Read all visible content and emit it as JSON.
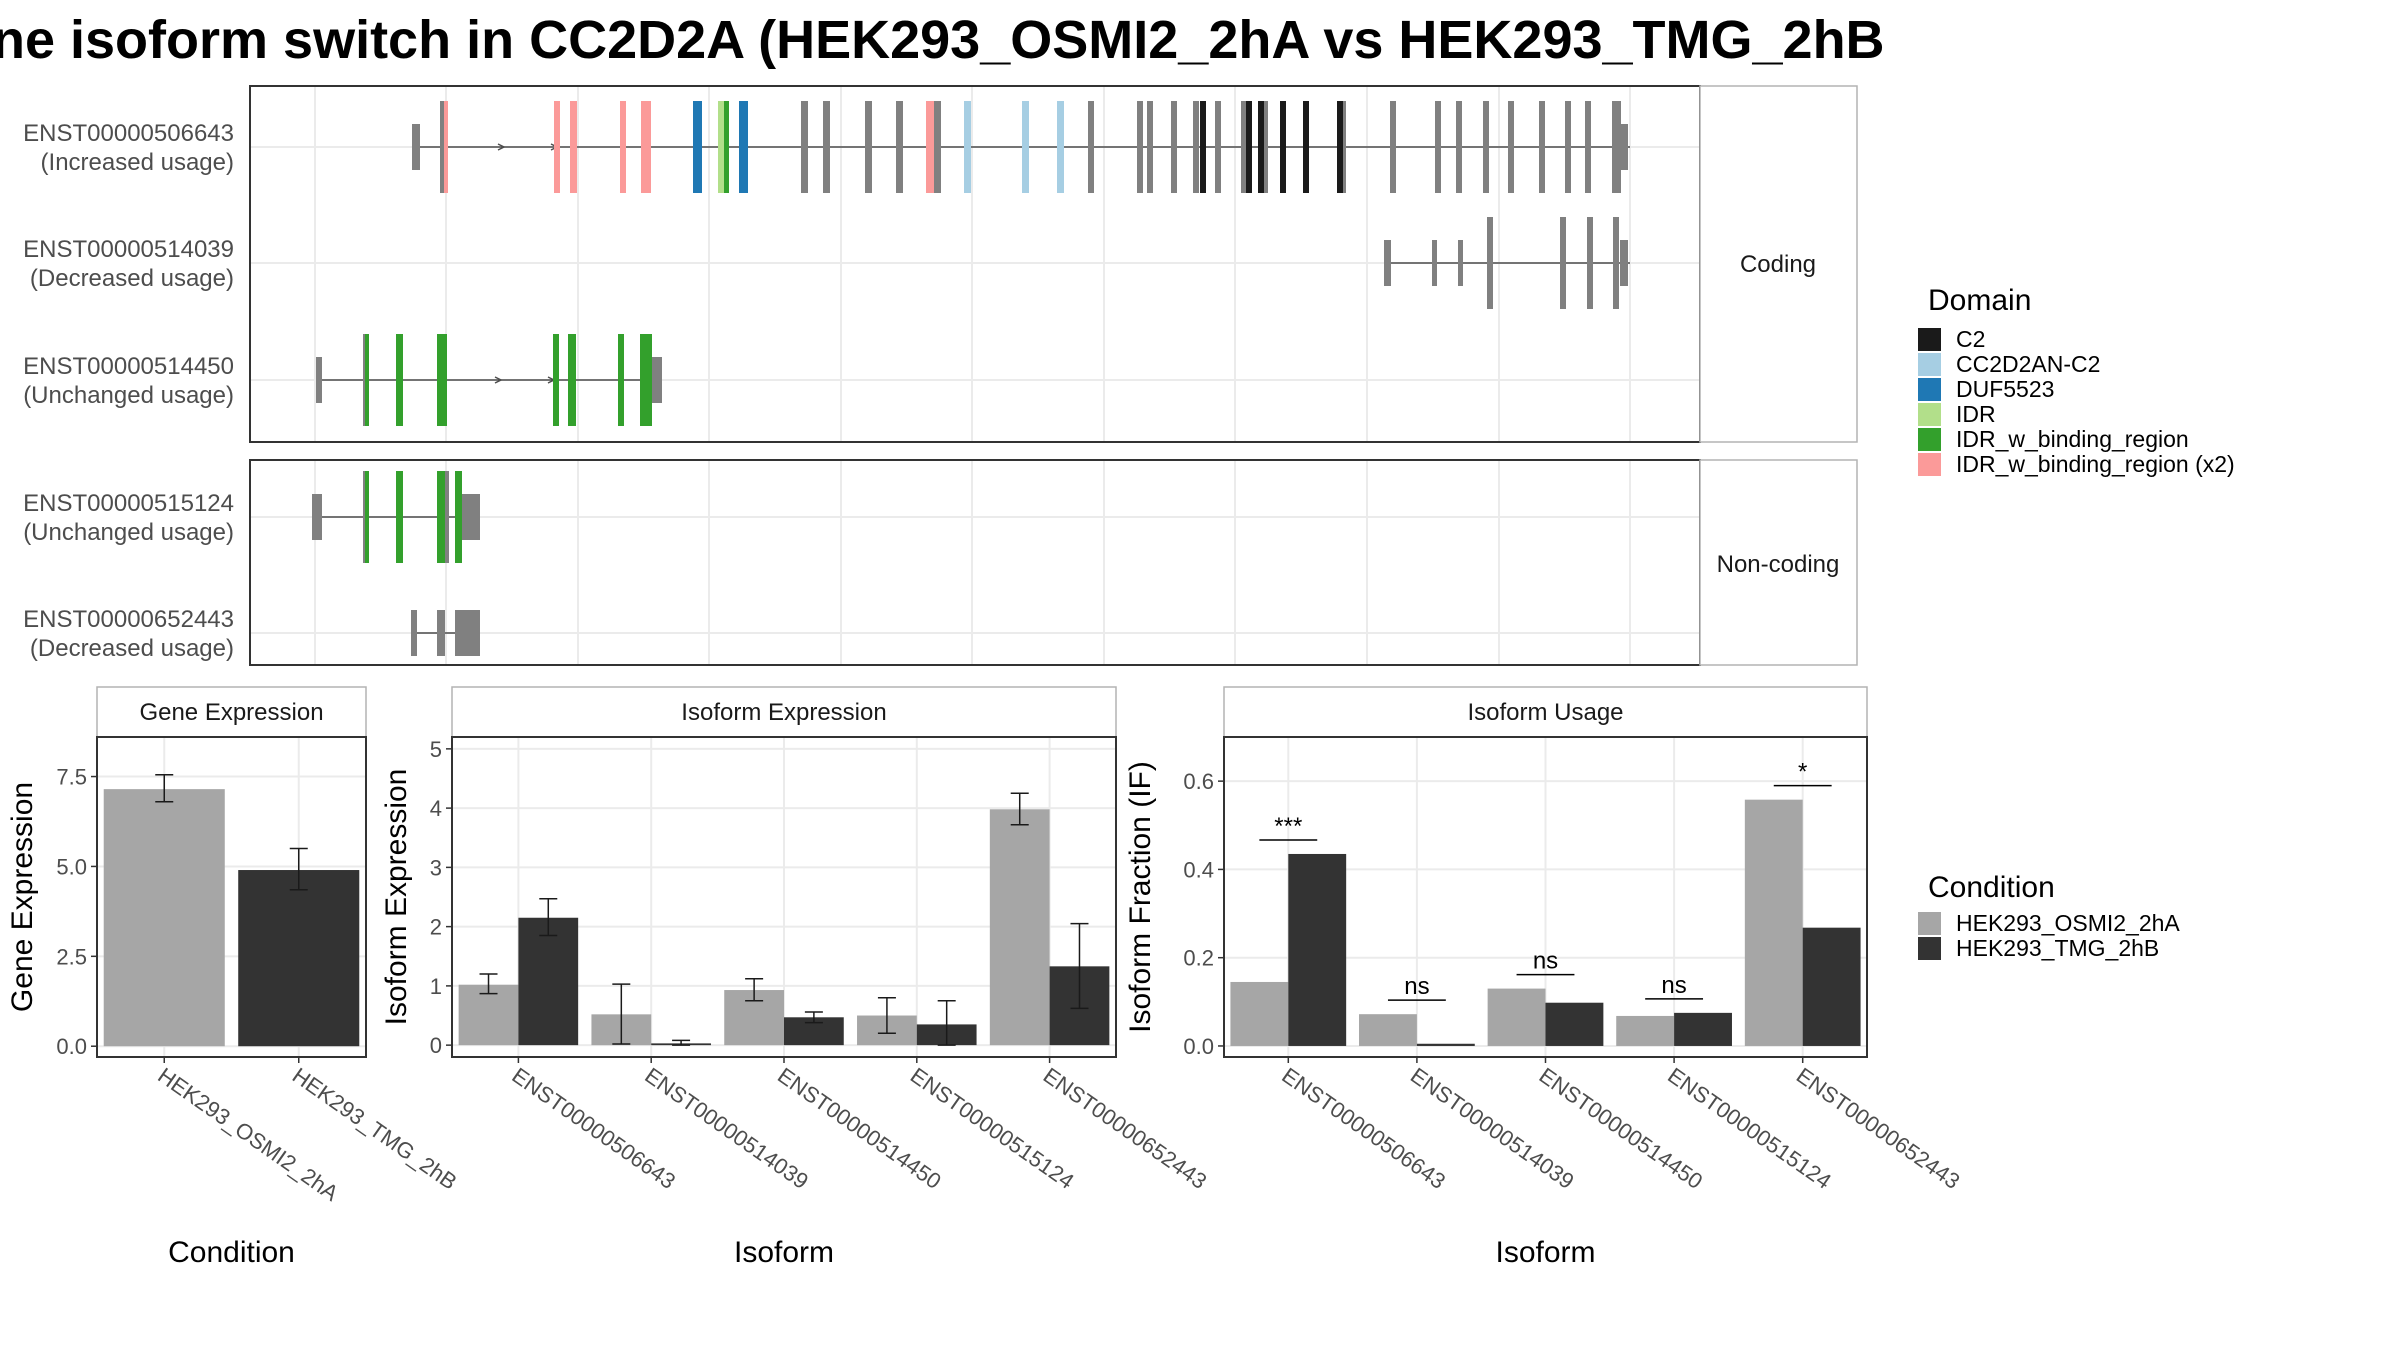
{
  "colors": {
    "exon_gray": "#808080",
    "C2": "#1a1a1a",
    "CC2D2AN-C2": "#a6cee3",
    "DUF5523": "#1f78b4",
    "IDR": "#b2df8a",
    "IDR_w_binding_region": "#33a02c",
    "IDR_w_binding_region (x2)": "#fb9a99",
    "cond1": "#a6a6a6",
    "cond2": "#333333"
  },
  "title": "ne isoform switch in CC2D2A (HEK293_OSMI2_2hA vs HEK293_TMG_2hB",
  "structure": {
    "panels": [
      {
        "label": "Coding",
        "transcripts": [
          {
            "id": "ENST00000506643",
            "usage": "(Increased usage)"
          },
          {
            "id": "ENST00000514039",
            "usage": "(Decreased usage)"
          },
          {
            "id": "ENST00000514450",
            "usage": "(Unchanged usage)"
          }
        ]
      },
      {
        "label": "Non-coding",
        "transcripts": [
          {
            "id": "ENST00000515124",
            "usage": "(Unchanged usage)"
          },
          {
            "id": "ENST00000652443",
            "usage": "(Decreased usage)"
          }
        ]
      }
    ]
  },
  "legend_domain": {
    "title": "Domain",
    "items": [
      "C2",
      "CC2D2AN-C2",
      "DUF5523",
      "IDR",
      "IDR_w_binding_region",
      "IDR_w_binding_region (x2)"
    ]
  },
  "legend_condition": {
    "title": "Condition",
    "items": [
      "HEK293_OSMI2_2hA",
      "HEK293_TMG_2hB"
    ]
  },
  "chart_data": [
    {
      "type": "bar",
      "title": "Gene Expression",
      "xlabel": "Condition",
      "ylabel": "Gene Expression",
      "categories": [
        "HEK293_OSMI2_2hA",
        "HEK293_TMG_2hB"
      ],
      "values": [
        7.15,
        4.9
      ],
      "error_low": [
        6.8,
        4.35
      ],
      "error_high": [
        7.55,
        5.5
      ],
      "ylim": [
        -0.3,
        8.6
      ],
      "yticks": [
        "0.0",
        "2.5",
        "5.0",
        "7.5"
      ],
      "ytick_values": [
        0,
        2.5,
        5,
        7.5
      ]
    },
    {
      "type": "bar",
      "title": "Isoform Expression",
      "xlabel": "Isoform",
      "ylabel": "Isoform Expression",
      "categories": [
        "ENST00000506643",
        "ENST00000514039",
        "ENST00000514450",
        "ENST00000515124",
        "ENST00000652443"
      ],
      "series": [
        {
          "name": "HEK293_OSMI2_2hA",
          "values": [
            1.02,
            0.52,
            0.93,
            0.5,
            3.98
          ],
          "error_low": [
            0.87,
            0.02,
            0.75,
            0.2,
            3.72
          ],
          "error_high": [
            1.2,
            1.03,
            1.12,
            0.8,
            4.25
          ]
        },
        {
          "name": "HEK293_TMG_2hB",
          "values": [
            2.15,
            0.03,
            0.47,
            0.35,
            1.33
          ],
          "error_low": [
            1.85,
            0.0,
            0.38,
            0.0,
            0.62
          ],
          "error_high": [
            2.47,
            0.08,
            0.56,
            0.75,
            2.05
          ]
        }
      ],
      "ylim": [
        -0.2,
        5.2
      ],
      "yticks": [
        "0",
        "1",
        "2",
        "3",
        "4",
        "5"
      ],
      "ytick_values": [
        0,
        1,
        2,
        3,
        4,
        5
      ]
    },
    {
      "type": "bar",
      "title": "Isoform Usage",
      "xlabel": "Isoform",
      "ylabel": "Isoform Fraction (IF)",
      "categories": [
        "ENST00000506643",
        "ENST00000514039",
        "ENST00000514450",
        "ENST00000515124",
        "ENST00000652443"
      ],
      "series": [
        {
          "name": "HEK293_OSMI2_2hA",
          "values": [
            0.145,
            0.072,
            0.13,
            0.068,
            0.558
          ]
        },
        {
          "name": "HEK293_TMG_2hB",
          "values": [
            0.435,
            0.005,
            0.098,
            0.075,
            0.268
          ]
        }
      ],
      "significance": [
        "***",
        "ns",
        "ns",
        "ns",
        "*"
      ],
      "ylim": [
        -0.025,
        0.7
      ],
      "yticks": [
        "0.0",
        "0.2",
        "0.4",
        "0.6"
      ],
      "ytick_values": [
        0,
        0.2,
        0.4,
        0.6
      ]
    }
  ]
}
